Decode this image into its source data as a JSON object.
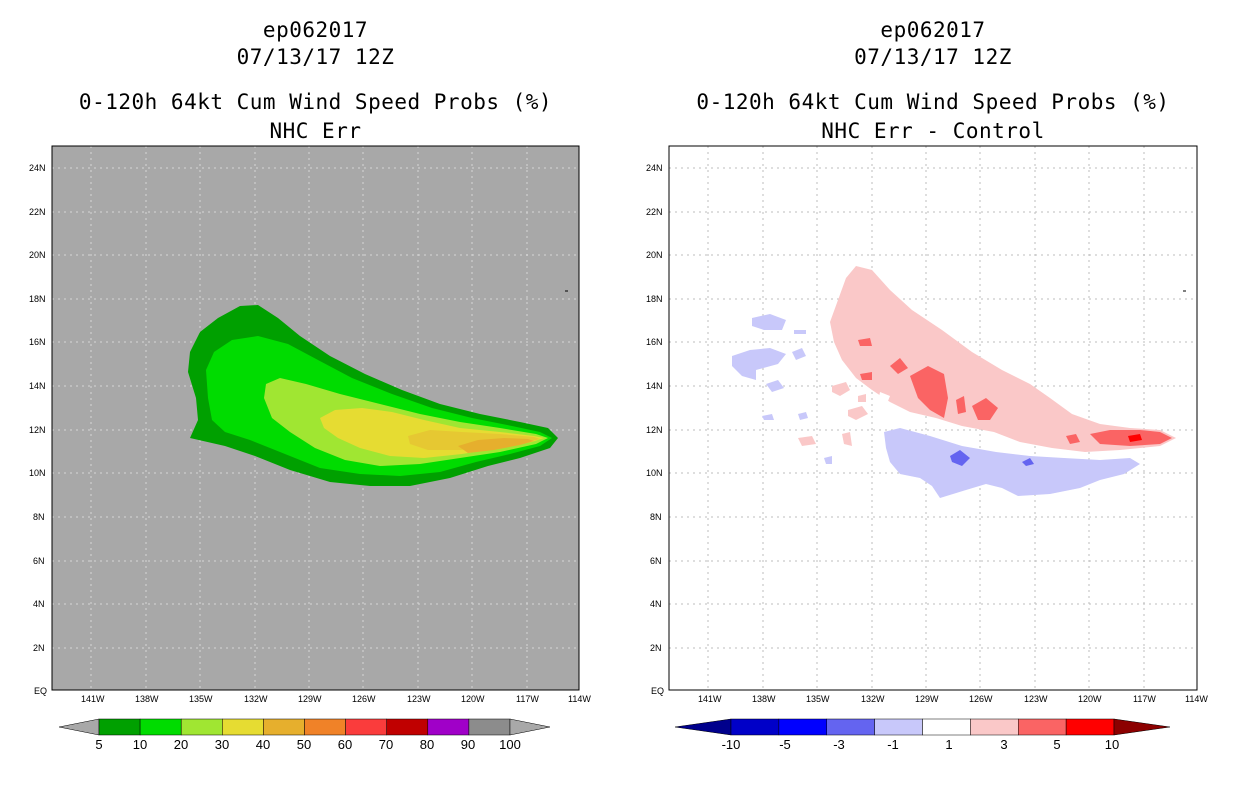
{
  "left_panel": {
    "title_storm": "ep062017",
    "title_time": "07/13/17 12Z",
    "title_product": "0-120h 64kt Cum Wind Speed Probs (%)",
    "title_subtitle": "NHC Err",
    "background_color": "#a8a8a8",
    "y_ticks": [
      "24N",
      "22N",
      "20N",
      "18N",
      "16N",
      "14N",
      "12N",
      "10N",
      "8N",
      "6N",
      "4N",
      "2N",
      "EQ"
    ],
    "x_ticks": [
      "141W",
      "138W",
      "135W",
      "132W",
      "129W",
      "126W",
      "123W",
      "120W",
      "117W",
      "114W"
    ],
    "colorbar": {
      "labels": [
        "5",
        "10",
        "20",
        "30",
        "40",
        "50",
        "60",
        "70",
        "80",
        "90",
        "100"
      ],
      "colors": [
        "#00a000",
        "#00dc00",
        "#a0e632",
        "#e6dc32",
        "#e6af2d",
        "#f08228",
        "#fa3c3c",
        "#c00000",
        "#a000c8",
        "#8c8c8c"
      ],
      "under_color": "#a8a8a8",
      "over_color": "#a8a8a8"
    }
  },
  "right_panel": {
    "title_storm": "ep062017",
    "title_time": "07/13/17 12Z",
    "title_product": "0-120h 64kt Cum Wind Speed Probs (%)",
    "title_subtitle": "NHC Err - Control",
    "background_color": "#ffffff",
    "y_ticks": [
      "24N",
      "22N",
      "20N",
      "18N",
      "16N",
      "14N",
      "12N",
      "10N",
      "8N",
      "6N",
      "4N",
      "2N",
      "EQ"
    ],
    "x_ticks": [
      "141W",
      "138W",
      "135W",
      "132W",
      "129W",
      "126W",
      "123W",
      "120W",
      "117W",
      "114W"
    ],
    "colorbar": {
      "labels": [
        "-10",
        "-5",
        "-3",
        "-1",
        "1",
        "3",
        "5",
        "10"
      ],
      "colors": [
        "#0000c8",
        "#0000ff",
        "#6464f0",
        "#c8c8fa",
        "#ffffff",
        "#fac8c8",
        "#fa6464",
        "#ff0000"
      ],
      "under_color": "#00008c",
      "over_color": "#8c0000"
    }
  }
}
